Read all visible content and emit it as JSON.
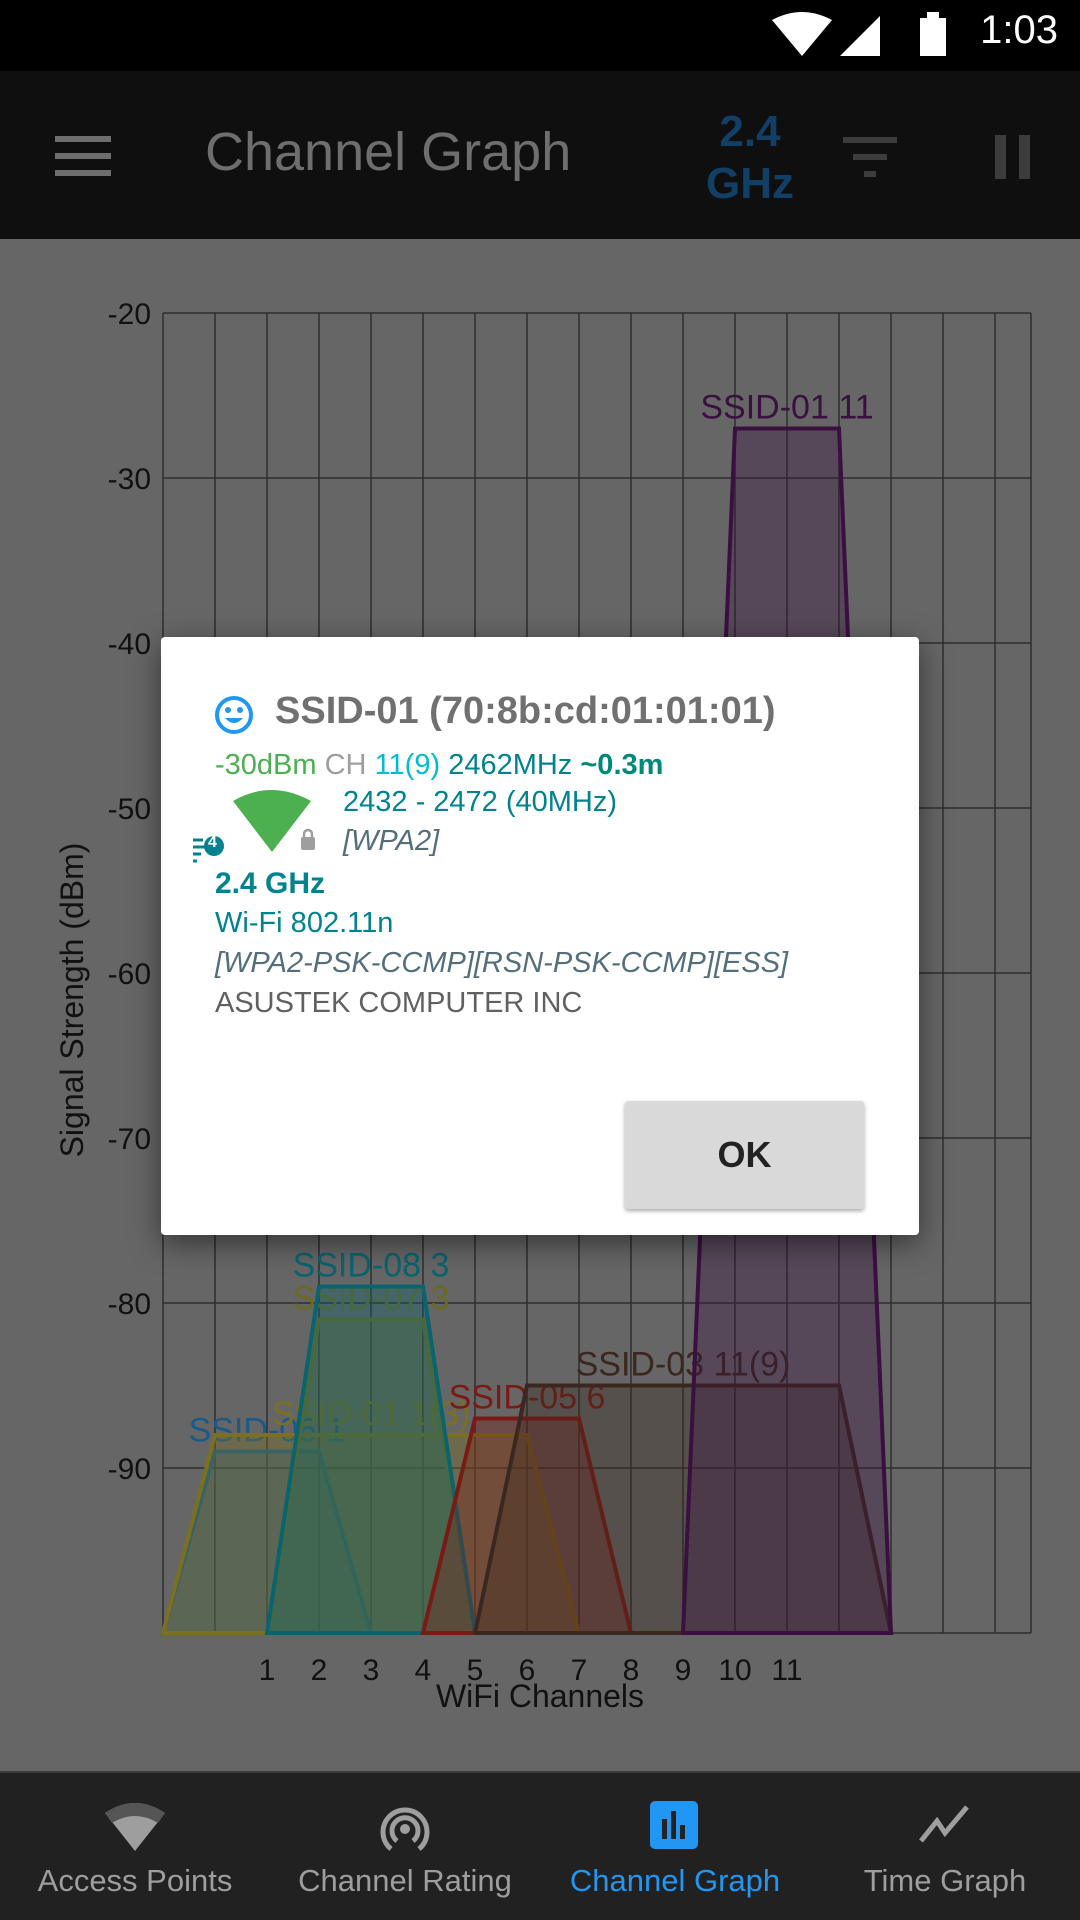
{
  "status_bar": {
    "time": "1:03",
    "icons": [
      "wifi-icon",
      "cell-signal-icon",
      "battery-icon"
    ]
  },
  "toolbar": {
    "title": "Channel Graph",
    "band_line1": "2.4",
    "band_line2": "GHz",
    "icons": [
      "menu-icon",
      "filter-icon",
      "pause-icon"
    ]
  },
  "chart_data": {
    "type": "area",
    "xlabel": "WiFi Channels",
    "ylabel": "Signal Strength (dBm)",
    "x_ticks": [
      "1",
      "2",
      "3",
      "4",
      "5",
      "6",
      "7",
      "8",
      "9",
      "10",
      "11"
    ],
    "y_ticks": [
      "-20",
      "-30",
      "-40",
      "-50",
      "-60",
      "-70",
      "-80",
      "-90"
    ],
    "ylim": [
      -100,
      -20
    ],
    "xlim": [
      -1,
      15.7
    ],
    "grid": true,
    "series": [
      {
        "name": "SSID-06 1",
        "label": "SSID-06 1",
        "start": -1,
        "end": 3,
        "level": -89,
        "color": "#1a5a8a"
      },
      {
        "name": "SSID-01 1(3)",
        "label": "SSID-01 1(3)",
        "start": -1,
        "end": 7,
        "level": -88,
        "color": "#7a7020"
      },
      {
        "name": "SSID-07 3",
        "label": "SSID-07 3",
        "start": 1,
        "end": 5,
        "level": -81,
        "color": "#6a6a22"
      },
      {
        "name": "SSID-08 3",
        "label": "SSID-08 3",
        "start": 1,
        "end": 5,
        "level": -79,
        "color": "#0a6470"
      },
      {
        "name": "SSID-05 6",
        "label": "SSID-05 6",
        "start": 4,
        "end": 8,
        "level": -87,
        "color": "#7a1a14"
      },
      {
        "name": "SSID-03 11(9)",
        "label": "SSID-03 11(9)",
        "start": 5,
        "end": 13,
        "level": -85,
        "color": "#3a2820"
      },
      {
        "name": "SSID-01 11",
        "label": "SSID-01 11",
        "start": 9,
        "end": 13,
        "level": -27,
        "color": "#3a1040"
      }
    ]
  },
  "dialog": {
    "title": "SSID-01 (70:8b:cd:01:01:01)",
    "signal": "-30dBm",
    "ch_label": "CH",
    "channel": "11(9)",
    "frequency": "2462MHz",
    "distance": "~0.3m",
    "range": "2432 - 2472 (40MHz)",
    "security": "[WPA2]",
    "wifi_badge": "4",
    "band": "2.4 GHz",
    "standard": "Wi-Fi 802.11n",
    "capabilities": "[WPA2-PSK-CCMP][RSN-PSK-CCMP][ESS]",
    "vendor": "ASUSTEK COMPUTER INC",
    "ok_label": "OK",
    "colors": {
      "signal": "#4caf50",
      "channel": "#00bcd4",
      "teal": "#00897b",
      "smiley": "#2196f3"
    }
  },
  "nav": {
    "items": [
      {
        "label": "Access Points",
        "icon": "wifi-icon"
      },
      {
        "label": "Channel Rating",
        "icon": "radar-icon"
      },
      {
        "label": "Channel Graph",
        "icon": "bar-chart-icon",
        "active": true
      },
      {
        "label": "Time Graph",
        "icon": "line-chart-icon"
      }
    ]
  }
}
